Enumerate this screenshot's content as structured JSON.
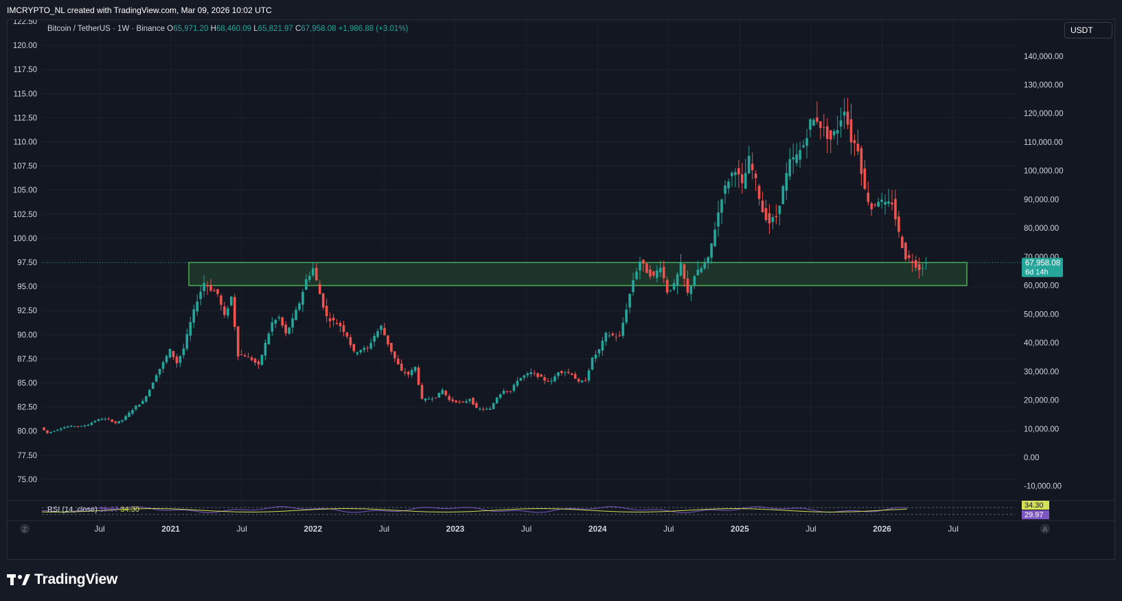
{
  "header": {
    "text": "IMCRYPTO_NL created with TradingView.com, Mar 09, 2026 10:02 UTC"
  },
  "legend": {
    "symbol": "Bitcoin / TetherUS · 1W · Binance",
    "open_label": "O",
    "open": "65,971.20",
    "high_label": "H",
    "high": "68,460.09",
    "low_label": "L",
    "low": "65,821.97",
    "close_label": "C",
    "close": "67,958.08",
    "change": "+1,986.88 (+3.01%)"
  },
  "unit_button": "USDT",
  "price_tag": {
    "price": "67,958.08",
    "countdown": "6d 14h"
  },
  "rsi_panel": {
    "label": "RSI (14, close)",
    "value_1": "29.97",
    "value_2": "34.30"
  },
  "corner_buttons": {
    "left": "Z",
    "right": "A"
  },
  "brand": "TradingView",
  "colors": {
    "up": "#26a69a",
    "down": "#ef5350",
    "zone_border": "#4caf50",
    "zone_fill": "#1f3a2a",
    "rsi_line": "#7e57c2",
    "rsi_ma": "#d4e157",
    "price_tag": "#26a69a"
  },
  "chart_data": {
    "type": "candlestick",
    "timeframe": "1W",
    "left_axis": {
      "ticks": [
        "122.50",
        "120.00",
        "117.50",
        "115.00",
        "112.50",
        "110.00",
        "107.50",
        "105.00",
        "102.50",
        "100.00",
        "97.50",
        "95.00",
        "92.50",
        "90.00",
        "87.50",
        "85.00",
        "82.50",
        "80.00",
        "77.50",
        "75.00"
      ]
    },
    "right_axis": {
      "ticks": [
        "140,000.00",
        "130,000.00",
        "120,000.00",
        "110,000.00",
        "100,000.00",
        "90,000.00",
        "80,000.00",
        "70,000.00",
        "60,000.00",
        "50,000.00",
        "40,000.00",
        "30,000.00",
        "20,000.00",
        "10,000.00",
        "0.00",
        "-10,000.00"
      ],
      "ylim": [
        -14000,
        150000
      ]
    },
    "x_axis": {
      "labels": [
        "Jul",
        "2021",
        "Jul",
        "2022",
        "Jul",
        "2023",
        "Jul",
        "2024",
        "Jul",
        "2025",
        "Jul",
        "2026",
        "Jul"
      ]
    },
    "support_zone": {
      "low": 60000,
      "high": 68000,
      "start": "2021-03",
      "end": "2026-05"
    },
    "last_price": 67958.08,
    "price_path_approx": [
      [
        0,
        10500
      ],
      [
        2,
        8500
      ],
      [
        4,
        9300
      ],
      [
        6,
        10200
      ],
      [
        8,
        10800
      ],
      [
        10,
        11000
      ],
      [
        12,
        10800
      ],
      [
        14,
        11500
      ],
      [
        16,
        12800
      ],
      [
        18,
        13500
      ],
      [
        20,
        13200
      ],
      [
        22,
        12000
      ],
      [
        24,
        13100
      ],
      [
        26,
        15500
      ],
      [
        28,
        17900
      ],
      [
        30,
        19500
      ],
      [
        32,
        23700
      ],
      [
        34,
        29000
      ],
      [
        36,
        33000
      ],
      [
        38,
        37500
      ],
      [
        40,
        33000
      ],
      [
        42,
        38000
      ],
      [
        44,
        47000
      ],
      [
        46,
        55000
      ],
      [
        48,
        61000
      ],
      [
        50,
        58800
      ],
      [
        52,
        57000
      ],
      [
        54,
        49000
      ],
      [
        56,
        56000
      ],
      [
        58,
        36000
      ],
      [
        60,
        35500
      ],
      [
        62,
        34200
      ],
      [
        64,
        32000
      ],
      [
        66,
        39800
      ],
      [
        68,
        47000
      ],
      [
        70,
        48800
      ],
      [
        72,
        43000
      ],
      [
        74,
        48000
      ],
      [
        76,
        54000
      ],
      [
        78,
        62000
      ],
      [
        80,
        66000
      ],
      [
        82,
        57000
      ],
      [
        84,
        49000
      ],
      [
        86,
        47500
      ],
      [
        88,
        46000
      ],
      [
        90,
        42500
      ],
      [
        92,
        36500
      ],
      [
        94,
        37700
      ],
      [
        96,
        38000
      ],
      [
        98,
        42500
      ],
      [
        100,
        45700
      ],
      [
        102,
        39700
      ],
      [
        104,
        34500
      ],
      [
        106,
        30000
      ],
      [
        108,
        29000
      ],
      [
        110,
        31500
      ],
      [
        112,
        20000
      ],
      [
        114,
        20500
      ],
      [
        116,
        21000
      ],
      [
        118,
        23500
      ],
      [
        120,
        20000
      ],
      [
        122,
        19500
      ],
      [
        124,
        19000
      ],
      [
        126,
        20500
      ],
      [
        128,
        17000
      ],
      [
        130,
        16800
      ],
      [
        132,
        16900
      ],
      [
        134,
        21000
      ],
      [
        136,
        23500
      ],
      [
        138,
        23000
      ],
      [
        140,
        27000
      ],
      [
        142,
        28500
      ],
      [
        144,
        29500
      ],
      [
        146,
        28500
      ],
      [
        148,
        27000
      ],
      [
        150,
        26500
      ],
      [
        152,
        30000
      ],
      [
        154,
        29800
      ],
      [
        156,
        29200
      ],
      [
        158,
        26100
      ],
      [
        160,
        26900
      ],
      [
        162,
        34500
      ],
      [
        164,
        37500
      ],
      [
        166,
        43000
      ],
      [
        168,
        42500
      ],
      [
        170,
        42000
      ],
      [
        172,
        52000
      ],
      [
        174,
        62000
      ],
      [
        176,
        68500
      ],
      [
        178,
        65000
      ],
      [
        180,
        63000
      ],
      [
        182,
        67000
      ],
      [
        184,
        58000
      ],
      [
        186,
        60000
      ],
      [
        188,
        67000
      ],
      [
        190,
        57000
      ],
      [
        192,
        63500
      ],
      [
        194,
        66000
      ],
      [
        196,
        69000
      ],
      [
        198,
        80000
      ],
      [
        200,
        91000
      ],
      [
        202,
        97000
      ],
      [
        204,
        101000
      ],
      [
        206,
        94500
      ],
      [
        208,
        104000
      ],
      [
        210,
        96000
      ],
      [
        212,
        86000
      ],
      [
        214,
        82000
      ],
      [
        216,
        84000
      ],
      [
        218,
        94000
      ],
      [
        220,
        103000
      ],
      [
        222,
        105000
      ],
      [
        224,
        109000
      ],
      [
        226,
        117000
      ],
      [
        228,
        118000
      ],
      [
        230,
        114000
      ],
      [
        232,
        111000
      ],
      [
        234,
        115000
      ],
      [
        236,
        122000
      ],
      [
        238,
        111000
      ],
      [
        240,
        108000
      ],
      [
        242,
        93000
      ],
      [
        244,
        87000
      ],
      [
        246,
        90000
      ],
      [
        248,
        88000
      ],
      [
        250,
        89000
      ],
      [
        252,
        78000
      ],
      [
        254,
        70000
      ],
      [
        256,
        68500
      ],
      [
        258,
        66000
      ],
      [
        260,
        67958
      ]
    ]
  }
}
